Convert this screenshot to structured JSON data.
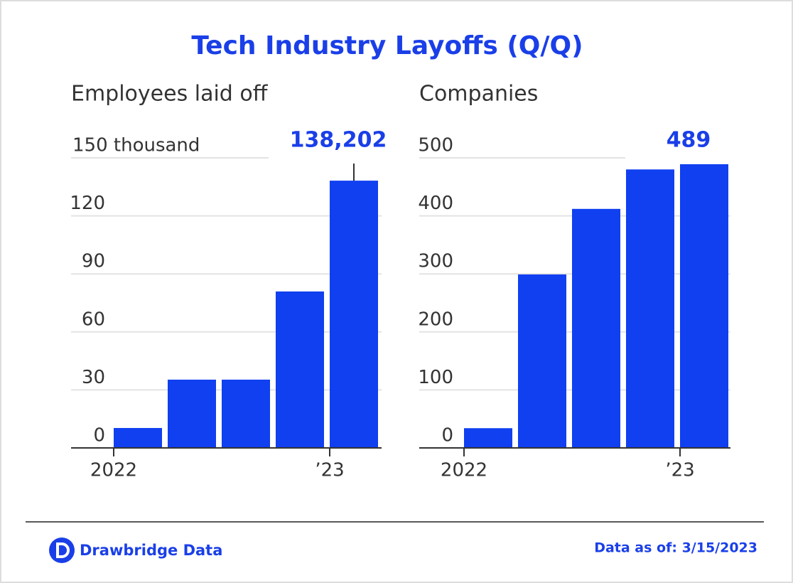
{
  "title": "Tech Industry Layoffs (Q/Q)",
  "chart_data": [
    {
      "type": "bar",
      "title": "Employees laid off",
      "categories": [
        "2022",
        null,
        null,
        null,
        "’23"
      ],
      "values": [
        10.3,
        35.3,
        35.3,
        80.9,
        138.202
      ],
      "value_labels": [
        null,
        null,
        null,
        null,
        "138,202"
      ],
      "color": "#1040f0",
      "ylim": [
        0,
        150
      ],
      "yticks": [
        0,
        30,
        60,
        90,
        120,
        {
          "value": 150,
          "label": "150 thousand"
        }
      ],
      "grid": true
    },
    {
      "type": "bar",
      "title": "Companies",
      "categories": [
        "2022",
        null,
        null,
        null,
        "’23"
      ],
      "values": [
        34,
        299,
        412,
        480,
        489
      ],
      "value_labels": [
        null,
        null,
        null,
        null,
        "489"
      ],
      "color": "#1040f0",
      "ylim": [
        0,
        500
      ],
      "yticks": [
        0,
        100,
        200,
        300,
        400,
        500
      ],
      "grid": true
    }
  ],
  "footer": {
    "brand": "Drawbridge Data",
    "date": "Data as of: 3/15/2023"
  }
}
